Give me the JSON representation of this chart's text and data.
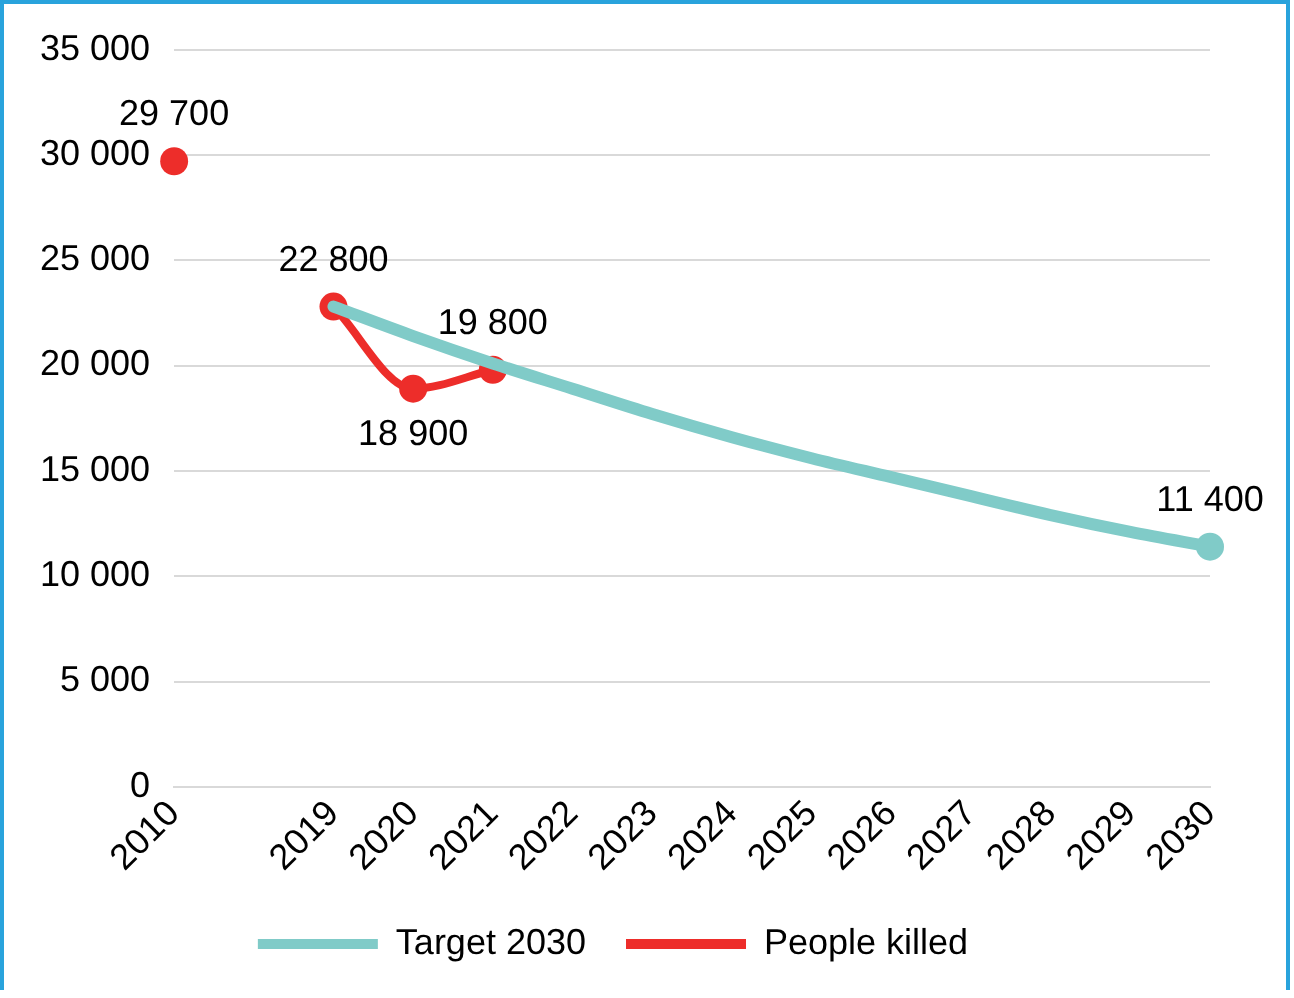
{
  "chart_data": {
    "type": "line",
    "categories": [
      "2010",
      null,
      "2019",
      "2020",
      "2021",
      "2022",
      "2023",
      "2024",
      "2025",
      "2026",
      "2027",
      "2028",
      "2029",
      "2030"
    ],
    "series": [
      {
        "name": "Target 2030",
        "color": "#80cbc8",
        "marker": "none",
        "values": [
          null,
          null,
          22800,
          21400,
          20100,
          18900,
          17700,
          16600,
          15600,
          14700,
          13800,
          12900,
          12100,
          11400
        ],
        "value_labels": [
          null,
          null,
          null,
          null,
          null,
          null,
          null,
          null,
          null,
          null,
          null,
          null,
          null,
          "11 400"
        ]
      },
      {
        "name": "People killed",
        "color": "#ed2d2a",
        "marker": "circle",
        "values": [
          29700,
          null,
          22800,
          18900,
          19800,
          null,
          null,
          null,
          null,
          null,
          null,
          null,
          null,
          null
        ],
        "value_labels": [
          "29 700",
          null,
          "22 800",
          "18 900",
          "19 800",
          null,
          null,
          null,
          null,
          null,
          null,
          null,
          null,
          null
        ]
      }
    ],
    "ylim": [
      0,
      35000
    ],
    "yticks": [
      {
        "value": 0,
        "label": "0"
      },
      {
        "value": 5000,
        "label": "5 000"
      },
      {
        "value": 10000,
        "label": "10 000"
      },
      {
        "value": 15000,
        "label": "15 000"
      },
      {
        "value": 20000,
        "label": "20 000"
      },
      {
        "value": 25000,
        "label": "25 000"
      },
      {
        "value": 30000,
        "label": "30 000"
      },
      {
        "value": 35000,
        "label": "35 000"
      }
    ],
    "grid": "y",
    "legend": "bottom"
  }
}
